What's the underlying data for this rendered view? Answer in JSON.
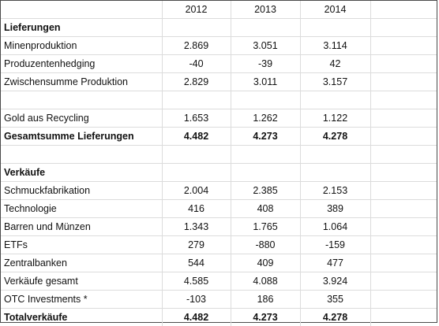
{
  "table": {
    "headers": [
      "",
      "2012",
      "2013",
      "2014",
      ""
    ],
    "rows": [
      {
        "label": "Lieferungen",
        "values": [
          "",
          "",
          ""
        ],
        "bold": true
      },
      {
        "label": "Minenproduktion",
        "values": [
          "2.869",
          "3.051",
          "3.114"
        ],
        "bold": false
      },
      {
        "label": "Produzentenhedging",
        "values": [
          "-40",
          "-39",
          "42"
        ],
        "bold": false
      },
      {
        "label": "Zwischensumme Produktion",
        "values": [
          "2.829",
          "3.011",
          "3.157"
        ],
        "bold": false
      },
      {
        "label": "",
        "values": [
          "",
          "",
          ""
        ],
        "bold": false
      },
      {
        "label": "Gold aus Recycling",
        "values": [
          "1.653",
          "1.262",
          "1.122"
        ],
        "bold": false
      },
      {
        "label": "Gesamtsumme Lieferungen",
        "values": [
          "4.482",
          "4.273",
          "4.278"
        ],
        "bold": true
      },
      {
        "label": "",
        "values": [
          "",
          "",
          ""
        ],
        "bold": false
      },
      {
        "label": "Verkäufe",
        "values": [
          "",
          "",
          ""
        ],
        "bold": true
      },
      {
        "label": "Schmuckfabrikation",
        "values": [
          "2.004",
          "2.385",
          "2.153"
        ],
        "bold": false
      },
      {
        "label": "Technologie",
        "values": [
          "416",
          "408",
          "389"
        ],
        "bold": false
      },
      {
        "label": "Barren und Münzen",
        "values": [
          "1.343",
          "1.765",
          "1.064"
        ],
        "bold": false
      },
      {
        "label": "ETFs",
        "values": [
          "279",
          "-880",
          "-159"
        ],
        "bold": false
      },
      {
        "label": "Zentralbanken",
        "values": [
          "544",
          "409",
          "477"
        ],
        "bold": false
      },
      {
        "label": "Verkäufe gesamt",
        "values": [
          "4.585",
          "4.088",
          "3.924"
        ],
        "bold": false
      },
      {
        "label": "OTC Investments *",
        "values": [
          "-103",
          "186",
          "355"
        ],
        "bold": false
      },
      {
        "label": "Totalverkäufe",
        "values": [
          "4.482",
          "4.273",
          "4.278"
        ],
        "bold": true
      }
    ]
  }
}
